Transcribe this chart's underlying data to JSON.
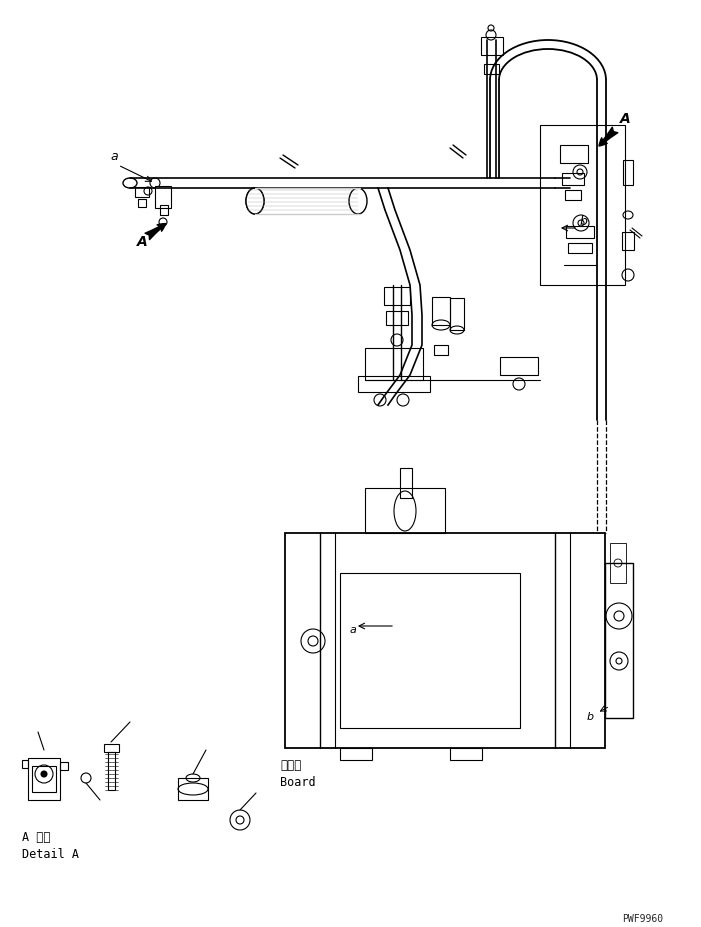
{
  "bg_color": "#ffffff",
  "line_color": "#000000",
  "watermark": "PWF9960",
  "label_a_detail": "A 詳細\nDetail A",
  "label_board": "ボード\nBoard",
  "fig_width": 7.01,
  "fig_height": 9.27,
  "dpi": 100
}
